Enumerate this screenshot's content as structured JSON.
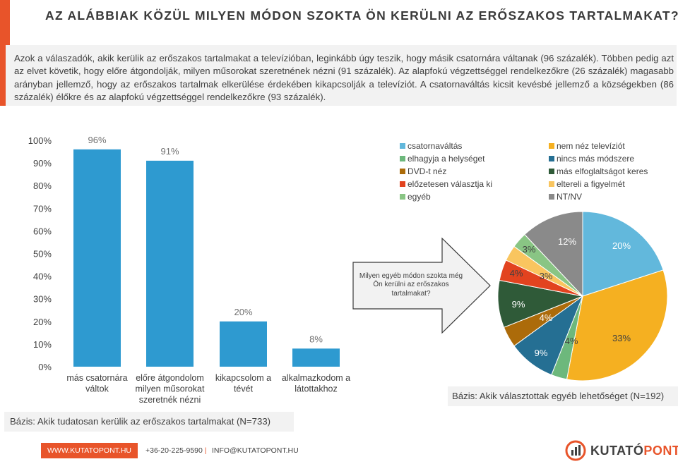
{
  "header": {
    "title": "AZ ALÁBBIAK KÖZÜL MILYEN MÓDON SZOKTA ÖN KERÜLNI AZ ERŐSZAKOS TARTALMAKAT?",
    "intro": "Azok a válaszadók, akik kerülik az erőszakos tartalmakat a televízióban, leginkább úgy teszik, hogy másik csatornára váltanak (96 százalék). Többen pedig azt az elvet követik, hogy előre átgondolják, milyen műsorokat szeretnének nézni (91 százalék). Az alapfokú végzettséggel rendelkezőkre (26 százalék) magasabb arányban jellemző, hogy az erőszakos tartalmak elkerülése érdekében kikapcsolják a televíziót. A csatornaváltás kicsit kevésbé jellemző a községekben (86 százalék) élőkre és az alapfokú végzettséggel rendelkezőkre (93 százalék).",
    "accent_color": "#e8542a"
  },
  "chart_data": [
    {
      "type": "bar",
      "categories": [
        "más csatornára váltok",
        "előre átgondolom milyen műsorokat szeretnék nézni",
        "kikapcsolom a tévét",
        "alkalmazkodom a látottakhoz"
      ],
      "category_lines": [
        [
          "más csatornára",
          "váltok"
        ],
        [
          "előre átgondolom",
          "milyen műsorokat",
          "szeretnék nézni"
        ],
        [
          "kikapcsolom a",
          "tévét"
        ],
        [
          "alkalmazkodom a",
          "látottakhoz"
        ]
      ],
      "values": [
        96,
        91,
        20,
        8
      ],
      "data_labels": [
        "96%",
        "91%",
        "20%",
        "8%"
      ],
      "yticks": [
        "0%",
        "10%",
        "20%",
        "30%",
        "40%",
        "50%",
        "60%",
        "70%",
        "80%",
        "90%",
        "100%"
      ],
      "ylim": [
        0,
        100
      ],
      "bar_color": "#2e9ad0",
      "grid": false,
      "base": "Bázis: Akik tudatosan kerülik az erőszakos tartalmakat (N=733)"
    },
    {
      "type": "pie",
      "question": "Milyen egyéb módon szokta még Ön kerülni az erőszakos tartalmakat?",
      "legend_placement": "top-right",
      "slices": [
        {
          "label": "csatornaváltás",
          "value": 20,
          "text": "20%",
          "color": "#62b8dc"
        },
        {
          "label": "nem néz televíziót",
          "value": 33,
          "text": "33%",
          "color": "#f5b021"
        },
        {
          "label": "elhagyja a helységet",
          "value": 3,
          "text": "",
          "color": "#6db87c"
        },
        {
          "label": "nincs más módszere",
          "value": 9,
          "text": "9%",
          "color": "#256f93"
        },
        {
          "label": "DVD-t néz",
          "value": 4,
          "text": "4%",
          "color": "#ac6b0a"
        },
        {
          "label": "más elfoglaltságot keres",
          "value": 9,
          "text": "9%",
          "color": "#2f5a38"
        },
        {
          "label": "előzetesen választja ki",
          "value": 4,
          "text": "4%",
          "color": "#e2431f"
        },
        {
          "label": "eltereli a figyelmét",
          "value": 3,
          "text": "3%",
          "color": "#f9c55f"
        },
        {
          "label": "egyéb",
          "value": 3,
          "text": "3%",
          "color": "#89c584"
        },
        {
          "label": "NT/NV",
          "value": 12,
          "text": "12%",
          "color": "#8a8a8a"
        }
      ],
      "extra_labels": [
        "4%",
        "3%"
      ],
      "base": "Bázis: Akik választottak egyéb lehetőséget (N=192)"
    }
  ],
  "footer": {
    "url": "WWW.KUTATOPONT.HU",
    "phone": "+36-20-225-9590",
    "separator": "|",
    "email": "INFO@KUTATOPONT.HU",
    "logo_part1": "KUTATÓ",
    "logo_part2": "PONT"
  }
}
